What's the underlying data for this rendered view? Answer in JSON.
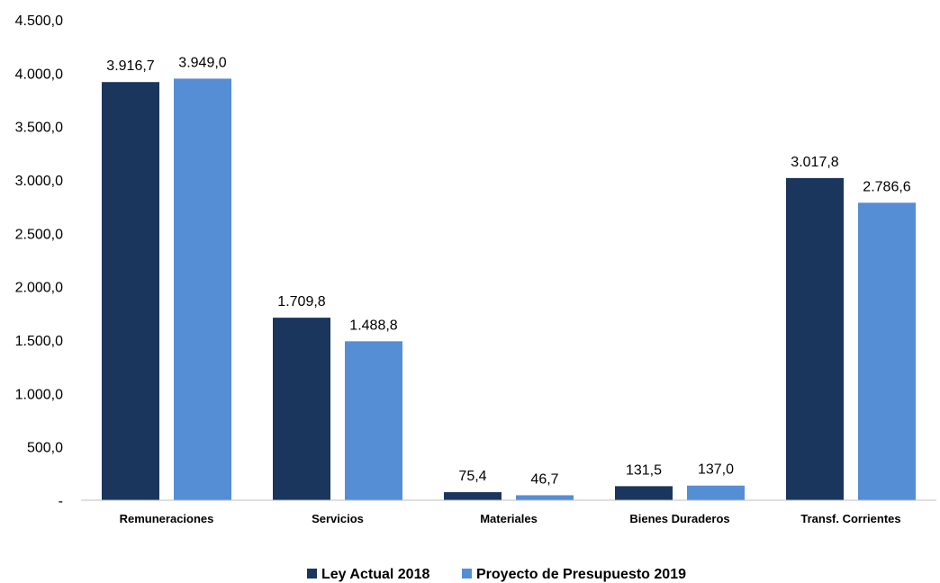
{
  "chart_data": {
    "type": "bar",
    "categories": [
      "Remuneraciones",
      "Servicios",
      "Materiales",
      "Bienes Duraderos",
      "Transf. Corrientes"
    ],
    "series": [
      {
        "name": "Ley Actual 2018",
        "color": "#1a365d",
        "values": [
          3916.7,
          1709.8,
          75.4,
          131.5,
          3017.8
        ],
        "labels": [
          "3.916,7",
          "1.709,8",
          "75,4",
          "131,5",
          "3.017,8"
        ]
      },
      {
        "name": "Proyecto de Presupuesto 2019",
        "color": "#558ed5",
        "values": [
          3949.0,
          1488.8,
          46.7,
          137.0,
          2786.6
        ],
        "labels": [
          "3.949,0",
          "1.488,8",
          "46,7",
          "137,0",
          "2.786,6"
        ]
      }
    ],
    "ylim": [
      0,
      4500
    ],
    "yticks": [
      {
        "value": 0,
        "label": "-"
      },
      {
        "value": 500,
        "label": "500,0"
      },
      {
        "value": 1000,
        "label": "1.000,0"
      },
      {
        "value": 1500,
        "label": "1.500,0"
      },
      {
        "value": 2000,
        "label": "2.000,0"
      },
      {
        "value": 2500,
        "label": "2.500,0"
      },
      {
        "value": 3000,
        "label": "3.000,0"
      },
      {
        "value": 3500,
        "label": "3.500,0"
      },
      {
        "value": 4000,
        "label": "4.000,0"
      },
      {
        "value": 4500,
        "label": "4.500,0"
      }
    ],
    "grid": false,
    "legend": "bottom-center",
    "title": "",
    "xlabel": "",
    "ylabel": ""
  }
}
